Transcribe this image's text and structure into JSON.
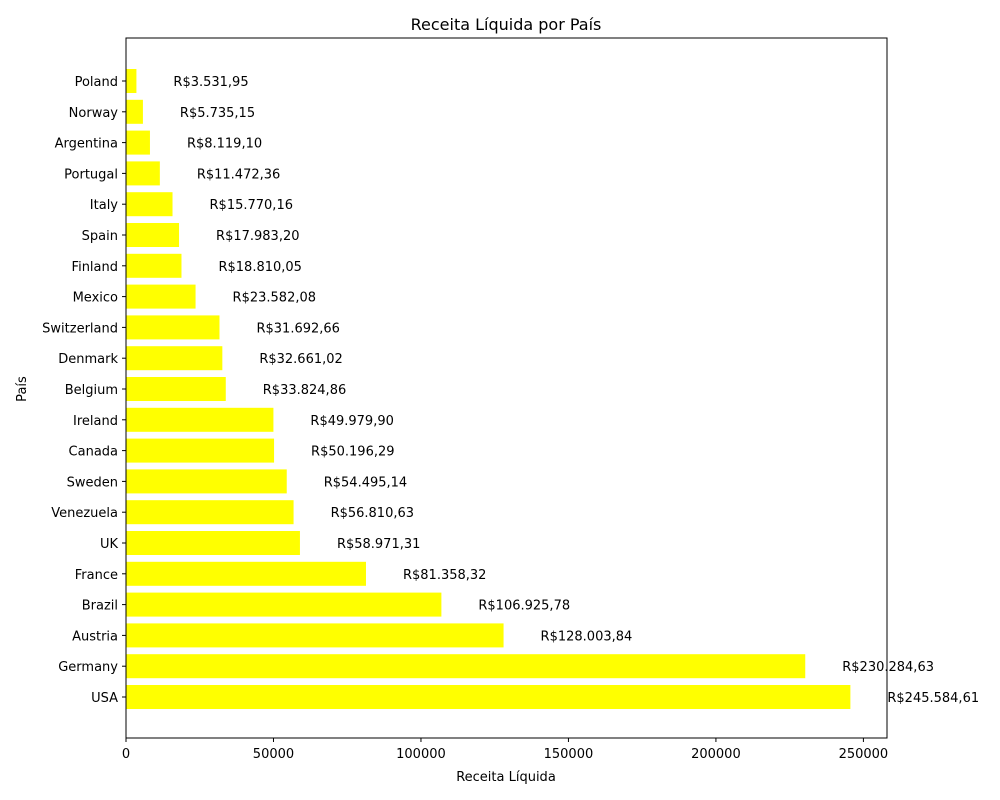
{
  "chart_data": {
    "type": "bar",
    "orientation": "horizontal",
    "title": "Receita Líquida por País",
    "xlabel": "Receita Líquida",
    "ylabel": "País",
    "xlim": [
      0,
      258000
    ],
    "xticks": [
      0,
      50000,
      100000,
      150000,
      200000,
      250000
    ],
    "xtick_labels": [
      "0",
      "50000",
      "100000",
      "150000",
      "200000",
      "250000"
    ],
    "bar_color": "#ffff00",
    "grid": false,
    "categories": [
      "USA",
      "Germany",
      "Austria",
      "Brazil",
      "France",
      "UK",
      "Venezuela",
      "Sweden",
      "Canada",
      "Ireland",
      "Belgium",
      "Denmark",
      "Switzerland",
      "Mexico",
      "Finland",
      "Spain",
      "Italy",
      "Portugal",
      "Argentina",
      "Norway",
      "Poland"
    ],
    "values": [
      245584.61,
      230284.63,
      128003.84,
      106925.78,
      81358.32,
      58971.31,
      56810.63,
      54495.14,
      50196.29,
      49979.9,
      33824.86,
      32661.02,
      31692.66,
      23582.08,
      18810.05,
      17983.2,
      15770.16,
      11472.36,
      8119.1,
      5735.15,
      3531.95
    ],
    "data_labels": [
      "R$245.584,61",
      "R$230.284,63",
      "R$128.003,84",
      "R$106.925,78",
      "R$81.358,32",
      "R$58.971,31",
      "R$56.810,63",
      "R$54.495,14",
      "R$50.196,29",
      "R$49.979,90",
      "R$33.824,86",
      "R$32.661,02",
      "R$31.692,66",
      "R$23.582,08",
      "R$18.810,05",
      "R$17.983,20",
      "R$15.770,16",
      "R$11.472,36",
      "R$8.119,10",
      "R$5.735,15",
      "R$3.531,95"
    ]
  }
}
